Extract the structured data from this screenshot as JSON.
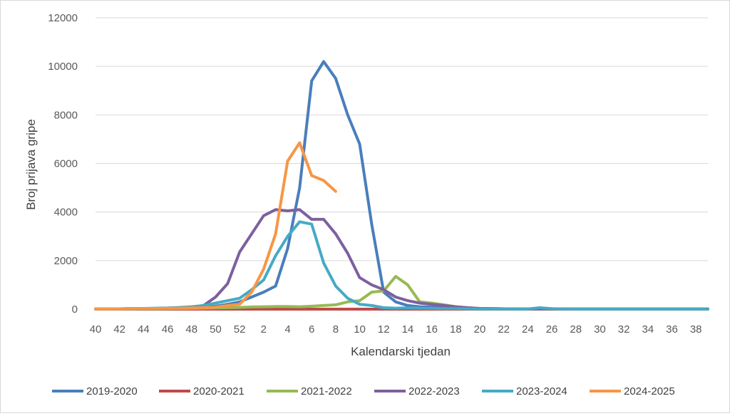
{
  "chart_data": {
    "type": "line",
    "xlabel": "Kalendarski tjedan",
    "ylabel": "Broj prijava gripe",
    "ylim": [
      0,
      12000
    ],
    "yticks": [
      "0",
      "2000",
      "4000",
      "6000",
      "8000",
      "10000",
      "12000"
    ],
    "weeks": [
      "40",
      "41",
      "42",
      "43",
      "44",
      "45",
      "46",
      "47",
      "48",
      "49",
      "50",
      "51",
      "52",
      "1",
      "2",
      "3",
      "4",
      "5",
      "6",
      "7",
      "8",
      "9",
      "10",
      "11",
      "12",
      "13",
      "14",
      "15",
      "16",
      "17",
      "18",
      "19",
      "20",
      "21",
      "22",
      "23",
      "24",
      "25",
      "26",
      "27",
      "28",
      "29",
      "30",
      "31",
      "32",
      "33",
      "34",
      "35",
      "36",
      "37",
      "38",
      "39"
    ],
    "xtick_labels": [
      "40",
      "42",
      "44",
      "46",
      "48",
      "50",
      "52",
      "2",
      "4",
      "6",
      "8",
      "10",
      "12",
      "14",
      "16",
      "18",
      "20",
      "22",
      "24",
      "26",
      "28",
      "30",
      "32",
      "34",
      "36",
      "38"
    ],
    "grid": "horizontal",
    "legend": "bottom",
    "series": [
      {
        "name": "2019-2020",
        "color": "#4a7ebb",
        "values": [
          5,
          10,
          15,
          20,
          20,
          25,
          30,
          40,
          60,
          80,
          120,
          200,
          300,
          500,
          700,
          950,
          2500,
          5000,
          9400,
          10200,
          9500,
          8000,
          6800,
          3500,
          700,
          300,
          150,
          100,
          80,
          60,
          40,
          30,
          20,
          20,
          15,
          10,
          10,
          10,
          10,
          10,
          10,
          10,
          10,
          10,
          10,
          10,
          10,
          10,
          10,
          10,
          10,
          10
        ]
      },
      {
        "name": "2020-2021",
        "color": "#be4b48",
        "values": [
          0,
          0,
          0,
          0,
          0,
          0,
          0,
          0,
          0,
          0,
          0,
          0,
          0,
          0,
          0,
          0,
          0,
          0,
          0,
          0,
          0,
          0,
          0,
          0,
          0,
          0,
          0,
          0,
          0,
          0,
          0,
          0,
          0,
          0,
          0,
          0,
          0,
          0,
          0,
          0,
          0,
          0,
          0,
          0,
          0,
          0,
          0,
          0,
          0,
          0,
          0,
          0
        ]
      },
      {
        "name": "2021-2022",
        "color": "#98b954",
        "values": [
          5,
          10,
          10,
          10,
          15,
          15,
          20,
          25,
          30,
          40,
          50,
          60,
          70,
          90,
          100,
          110,
          110,
          100,
          120,
          150,
          180,
          300,
          350,
          700,
          750,
          1350,
          1000,
          300,
          250,
          180,
          100,
          60,
          30,
          20,
          15,
          10,
          10,
          10,
          10,
          10,
          10,
          10,
          10,
          10,
          10,
          10,
          10,
          10,
          10,
          10,
          10,
          10
        ]
      },
      {
        "name": "2022-2023",
        "color": "#7d60a0",
        "values": [
          5,
          10,
          15,
          20,
          25,
          30,
          40,
          60,
          80,
          150,
          500,
          1050,
          2350,
          3100,
          3850,
          4100,
          4050,
          4100,
          3700,
          3700,
          3100,
          2300,
          1300,
          1000,
          800,
          500,
          350,
          250,
          200,
          150,
          100,
          60,
          30,
          20,
          15,
          10,
          10,
          10,
          10,
          10,
          10,
          10,
          10,
          10,
          10,
          10,
          10,
          10,
          10,
          10,
          10,
          10
        ]
      },
      {
        "name": "2023-2024",
        "color": "#46aac5",
        "values": [
          5,
          10,
          15,
          20,
          30,
          40,
          50,
          70,
          100,
          150,
          250,
          350,
          450,
          800,
          1200,
          2200,
          3000,
          3600,
          3500,
          1900,
          950,
          450,
          200,
          150,
          60,
          40,
          50,
          40,
          30,
          25,
          20,
          15,
          10,
          10,
          10,
          10,
          10,
          60,
          20,
          10,
          10,
          10,
          10,
          10,
          10,
          10,
          10,
          10,
          10,
          10,
          10,
          10
        ]
      },
      {
        "name": "2024-2025",
        "color": "#f79646",
        "values": [
          5,
          10,
          15,
          20,
          25,
          30,
          35,
          40,
          50,
          60,
          80,
          150,
          200,
          700,
          1650,
          3100,
          6100,
          6850,
          5500,
          5300,
          4850
        ]
      }
    ]
  }
}
